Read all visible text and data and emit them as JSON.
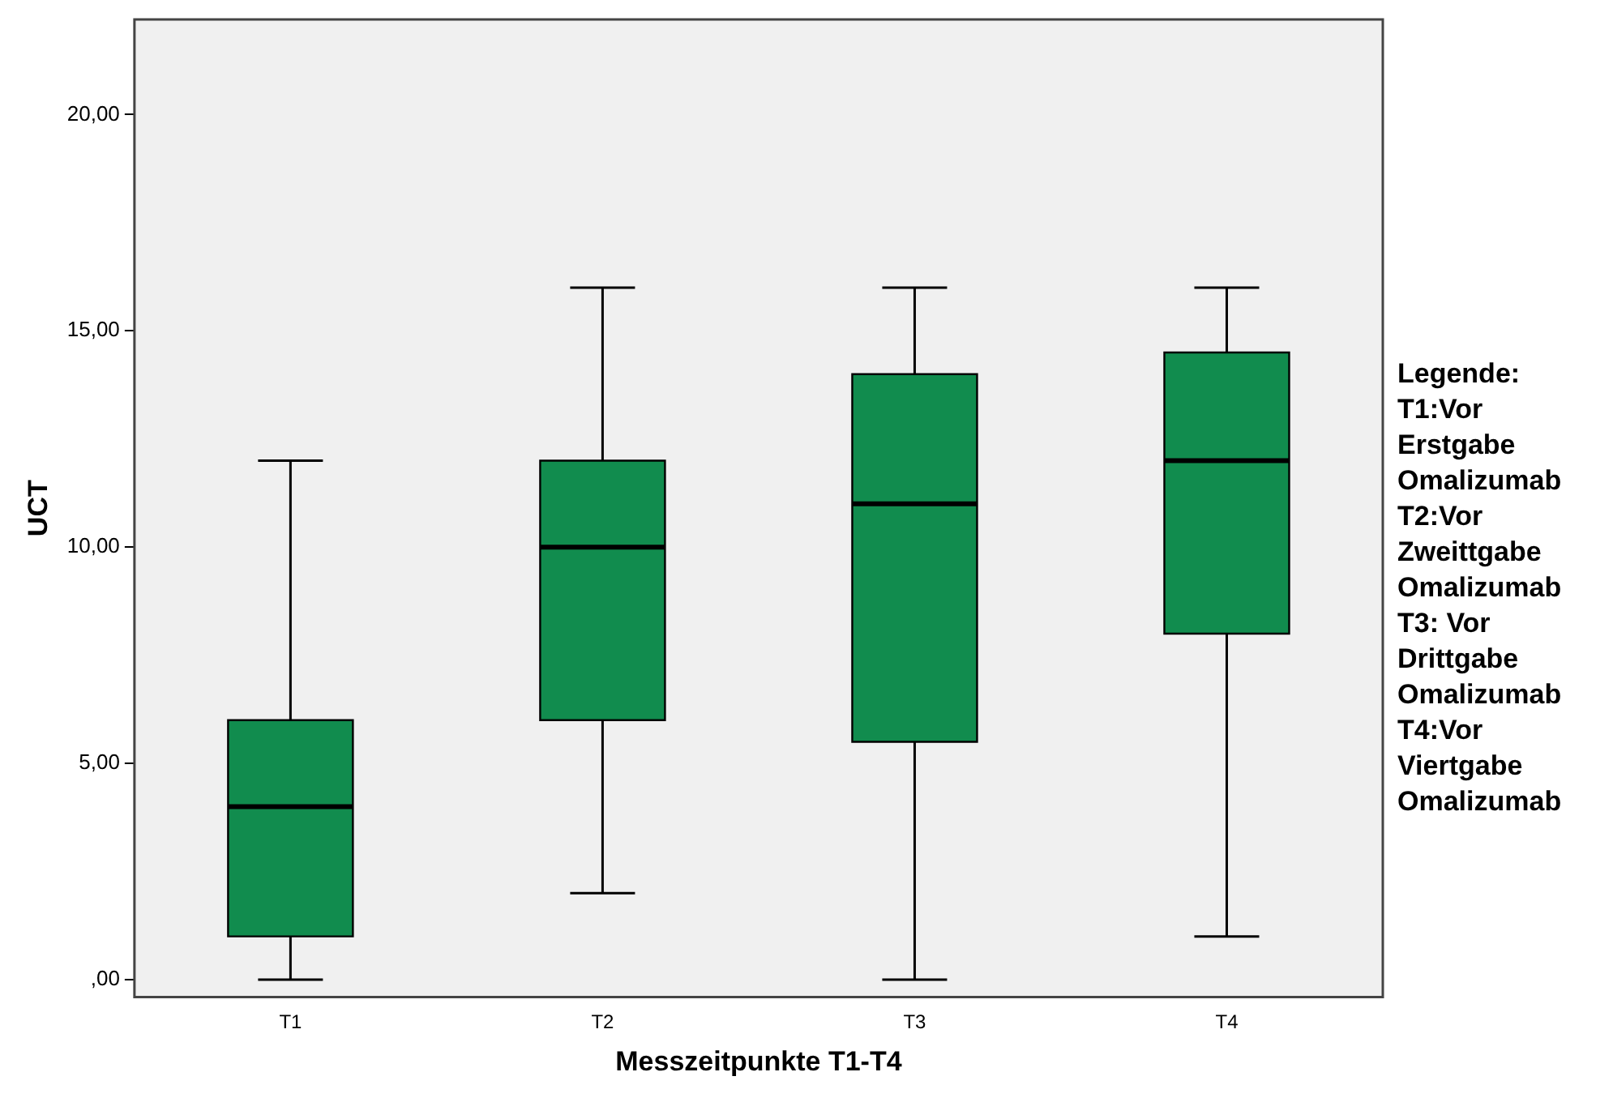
{
  "chart_data": {
    "type": "box",
    "xlabel": "Messzeitpunkte T1-T4",
    "ylabel": "UCT",
    "categories": [
      "T1",
      "T2",
      "T3",
      "T4"
    ],
    "color": "#118c4e",
    "boxes": [
      {
        "low": 0,
        "q1": 1,
        "median": 4,
        "q3": 6,
        "high": 12
      },
      {
        "low": 2,
        "q1": 6,
        "median": 10,
        "q3": 12,
        "high": 16
      },
      {
        "low": 0,
        "q1": 5.5,
        "median": 11,
        "q3": 14,
        "high": 16
      },
      {
        "low": 1,
        "q1": 8,
        "median": 12,
        "q3": 14.5,
        "high": 16
      }
    ],
    "ylim": [
      -0.4,
      22.2
    ],
    "yticks": [
      {
        "value": 0,
        "label": ",00"
      },
      {
        "value": 5,
        "label": "5,00"
      },
      {
        "value": 10,
        "label": "10,00"
      },
      {
        "value": 15,
        "label": "15,00"
      },
      {
        "value": 20,
        "label": "20,00"
      }
    ],
    "grid": false,
    "legend": false,
    "annotations": [
      "Legende:\nT1:Vor\nErstgabe\nOmalizumab\nT2:Vor\nZweittgabe\nOmalizumab\nT3: Vor\nDrittgabe\nOmalizumab\nT4:Vor\nViertgabe\nOmalizumab"
    ]
  }
}
